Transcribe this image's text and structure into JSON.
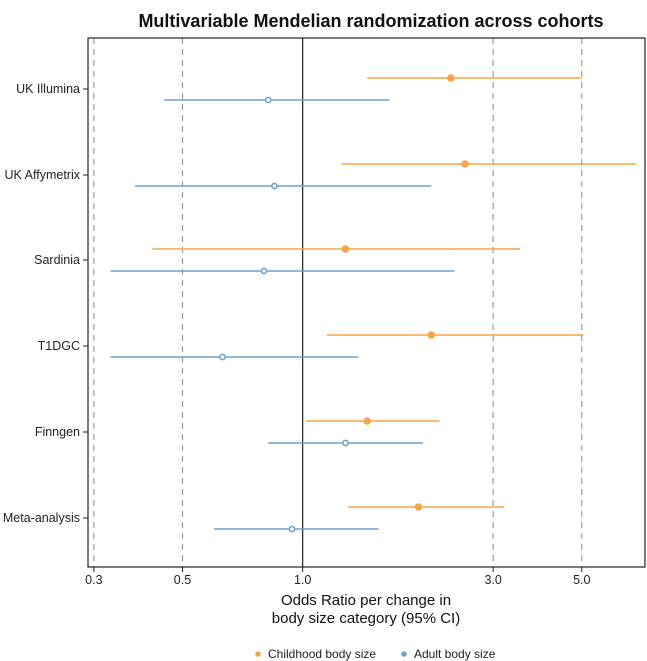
{
  "chart_data": {
    "type": "forest",
    "title": "Multivariable Mendelian randomization across cohorts",
    "xlabel_lines": [
      "Odds Ratio per change in",
      "body size category (95% CI)"
    ],
    "x_scale": "log",
    "xlim": [
      0.29,
      7.2
    ],
    "x_ticks": [
      0.3,
      0.5,
      1.0,
      3.0,
      5.0
    ],
    "x_tick_labels": [
      "0.3",
      "0.5",
      "1.0",
      "3.0",
      "5.0"
    ],
    "dashed_reference_lines": [
      0.3,
      0.5,
      3.0,
      5.0
    ],
    "solid_reference_line": 1.0,
    "categories": [
      "UK Illumina",
      "UK Affymetrix",
      "Sardinia",
      "T1DGC",
      "Finngen",
      "Meta-analysis"
    ],
    "legend_position": "bottom",
    "series": [
      {
        "name": "Childhood body size",
        "color": "#f5a54a",
        "marker": "filled-circle",
        "or": [
          2.35,
          2.55,
          1.28,
          2.1,
          1.45,
          1.95
        ],
        "lower": [
          1.45,
          1.25,
          0.42,
          1.15,
          1.02,
          1.3
        ],
        "upper": [
          5.0,
          6.85,
          3.5,
          5.05,
          2.2,
          3.2
        ]
      },
      {
        "name": "Adult body size",
        "color": "#6fa3cc",
        "marker": "open-circle",
        "or": [
          0.82,
          0.85,
          0.8,
          0.63,
          1.28,
          0.94
        ],
        "lower": [
          0.45,
          0.38,
          0.33,
          0.33,
          0.82,
          0.6
        ],
        "upper": [
          1.65,
          2.1,
          2.4,
          1.38,
          2.0,
          1.55
        ]
      }
    ]
  }
}
